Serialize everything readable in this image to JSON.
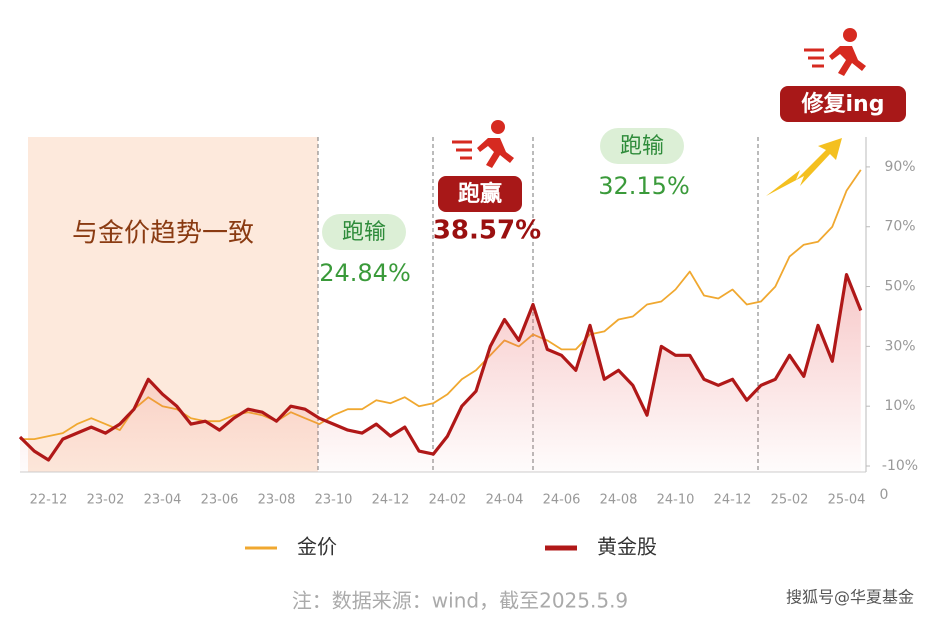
{
  "chart_data": {
    "type": "line",
    "categories": [
      null,
      null,
      "22-12",
      null,
      null,
      null,
      "23-02",
      null,
      null,
      null,
      "23-04",
      null,
      null,
      null,
      "23-06",
      null,
      null,
      null,
      "23-08",
      null,
      null,
      null,
      "23-10",
      null,
      null,
      null,
      "24-12",
      null,
      null,
      null,
      "24-02",
      null,
      null,
      null,
      "24-04",
      null,
      null,
      null,
      "24-06",
      null,
      null,
      null,
      "24-08",
      null,
      null,
      null,
      "24-10",
      null,
      null,
      null,
      "24-12",
      null,
      null,
      null,
      "25-02",
      null,
      null,
      null,
      "25-04",
      null
    ],
    "series": [
      {
        "name": "金价",
        "color": "#f0a830",
        "values": [
          -1,
          -1,
          0,
          1,
          4,
          6,
          4,
          2,
          9,
          13,
          10,
          9,
          6,
          5,
          5,
          7,
          8,
          7,
          5,
          8,
          6,
          4,
          7,
          9,
          9,
          12,
          11,
          13,
          10,
          11,
          14,
          19,
          22,
          27,
          32,
          30,
          34,
          32,
          29,
          29,
          34,
          35,
          39,
          40,
          44,
          45,
          49,
          55,
          47,
          46,
          49,
          44,
          45,
          50,
          60,
          64,
          65,
          70,
          82,
          89
        ]
      },
      {
        "name": "黄金股",
        "color": "#b01818",
        "values": [
          -0.3,
          -5,
          -8,
          -1,
          1,
          3,
          1,
          4,
          9,
          19,
          14,
          10,
          4,
          5,
          2,
          6,
          9,
          8,
          5,
          10,
          9,
          6,
          4,
          2,
          1,
          4,
          0,
          3,
          -5,
          -6,
          0,
          10,
          15,
          30,
          39,
          32,
          44,
          29,
          27,
          22,
          37,
          19,
          22,
          17,
          7,
          30,
          27,
          27,
          19,
          17,
          19,
          12,
          17,
          19,
          27,
          20,
          37,
          25,
          54,
          42
        ]
      }
    ],
    "ylim": [
      -12,
      100
    ],
    "yticks": [
      {
        "value": 90,
        "label": "90%"
      },
      {
        "value": 70,
        "label": "70%"
      },
      {
        "value": 50,
        "label": "50%"
      },
      {
        "value": 30,
        "label": "30%"
      },
      {
        "value": 10,
        "label": "10%"
      },
      {
        "value": -10,
        "label": "-10%"
      }
    ],
    "y_axis_bottom_label": "0",
    "annotations": [
      "与金价趋势一致",
      "跑输",
      "24.84%",
      "跑赢",
      "38.57%",
      "跑输",
      "32.15%",
      "修复ing"
    ],
    "note": "注：数据来源：wind，截至2025.5.9",
    "watermark": "搜狐号@华夏基金"
  }
}
